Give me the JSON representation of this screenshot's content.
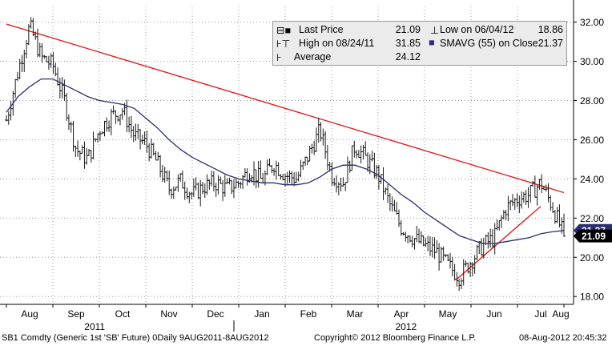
{
  "chart_data": {
    "type": "line",
    "title": "",
    "security": "SB1 Comdty (Generic 1st 'SB' Future)",
    "x_labels": [
      "Aug",
      "Sep",
      "Oct",
      "Nov",
      "Dec",
      "Jan",
      "Feb",
      "Mar",
      "Apr",
      "May",
      "Jun",
      "Jul",
      "Aug"
    ],
    "year_labels": [
      "2011",
      "2012"
    ],
    "ylim": [
      17.6,
      32.8
    ],
    "y_ticks": [
      "18.00",
      "20.00",
      "22.00",
      "24.00",
      "26.00",
      "28.00",
      "30.00",
      "32.00"
    ],
    "last_price_tag": "21.09",
    "sma_tag": "21.37",
    "legend": {
      "last_price_label": "Last Price",
      "last_price_value": "21.09",
      "high_label": "High on 08/24/11",
      "high_value": "31.85",
      "average_label": "Average",
      "average_value": "24.12",
      "low_label": "Low on 06/04/12",
      "low_value": "18.86",
      "smavg_label": "SMAVG (55) on Close",
      "smavg_value": "21.37"
    },
    "series": [
      {
        "name": "Last Price",
        "x": [
          0,
          0.25,
          0.5,
          0.75,
          1,
          1.25,
          1.5,
          1.75,
          2,
          2.25,
          2.5,
          2.75,
          3,
          3.25,
          3.5,
          3.75,
          4,
          4.25,
          4.5,
          4.75,
          5,
          5.25,
          5.5,
          5.75,
          6,
          6.25,
          6.5,
          6.75,
          7,
          7.25,
          7.5,
          7.75,
          8,
          8.25,
          8.5,
          8.75,
          9,
          9.25,
          9.5,
          9.75,
          10,
          10.25,
          10.5,
          10.75,
          11,
          11.25,
          11.5,
          11.75,
          12
        ],
        "y": [
          27.0,
          29.5,
          31.8,
          30.2,
          29.8,
          28.0,
          25.5,
          25.0,
          26.5,
          27.2,
          27.5,
          26.2,
          25.8,
          24.8,
          23.5,
          23.9,
          23.2,
          23.6,
          23.8,
          23.5,
          23.8,
          24.5,
          23.9,
          24.8,
          24.2,
          24.0,
          25.2,
          26.5,
          24.2,
          23.8,
          25.7,
          25.0,
          24.2,
          22.7,
          21.5,
          21.0,
          20.6,
          20.3,
          19.6,
          19.0,
          19.8,
          20.6,
          21.0,
          22.5,
          23.0,
          23.2,
          23.8,
          22.6,
          21.09
        ]
      },
      {
        "name": "SMAVG (55) on Close",
        "x": [
          0,
          0.25,
          0.5,
          0.75,
          1,
          1.25,
          1.5,
          1.75,
          2,
          2.25,
          2.5,
          2.75,
          3,
          3.25,
          3.5,
          3.75,
          4,
          4.25,
          4.5,
          4.75,
          5,
          5.25,
          5.5,
          5.75,
          6,
          6.25,
          6.5,
          6.75,
          7,
          7.25,
          7.5,
          7.75,
          8,
          8.25,
          8.5,
          8.75,
          9,
          9.25,
          9.5,
          9.75,
          10,
          10.25,
          10.5,
          10.75,
          11,
          11.25,
          11.5,
          11.75,
          12
        ],
        "y": [
          27.4,
          28.2,
          28.7,
          29.1,
          29.1,
          28.8,
          28.5,
          28.2,
          28.0,
          27.9,
          27.8,
          27.6,
          27.1,
          26.6,
          26.0,
          25.5,
          25.1,
          24.8,
          24.5,
          24.2,
          24.0,
          23.9,
          23.8,
          23.8,
          23.7,
          23.7,
          23.8,
          24.1,
          24.5,
          24.7,
          24.7,
          24.5,
          24.2,
          23.7,
          23.2,
          22.8,
          22.3,
          21.9,
          21.5,
          21.1,
          20.9,
          20.7,
          20.7,
          20.8,
          20.9,
          21.0,
          21.2,
          21.3,
          21.37
        ]
      }
    ],
    "trendlines": [
      {
        "x": [
          0,
          12
        ],
        "y": [
          31.9,
          23.3
        ]
      },
      {
        "x": [
          9.7,
          11.5
        ],
        "y": [
          18.9,
          22.6
        ]
      }
    ],
    "footer": {
      "left": "SB1 Comdty (Generic 1st 'SB' Future) 0Daily 9AUG2011-8AUG2012",
      "middle": "Copyright© 2012 Bloomberg Finance L.P.",
      "right": "08-Aug-2012 20:45:32"
    },
    "colors": {
      "price": "#1a1a1a",
      "sma": "#2b2d6e",
      "trend": "#e02020",
      "axis": "#000000",
      "grid": "#9a9a9a",
      "tag_bg": "#000000",
      "tag_fg": "#ffffff"
    }
  }
}
